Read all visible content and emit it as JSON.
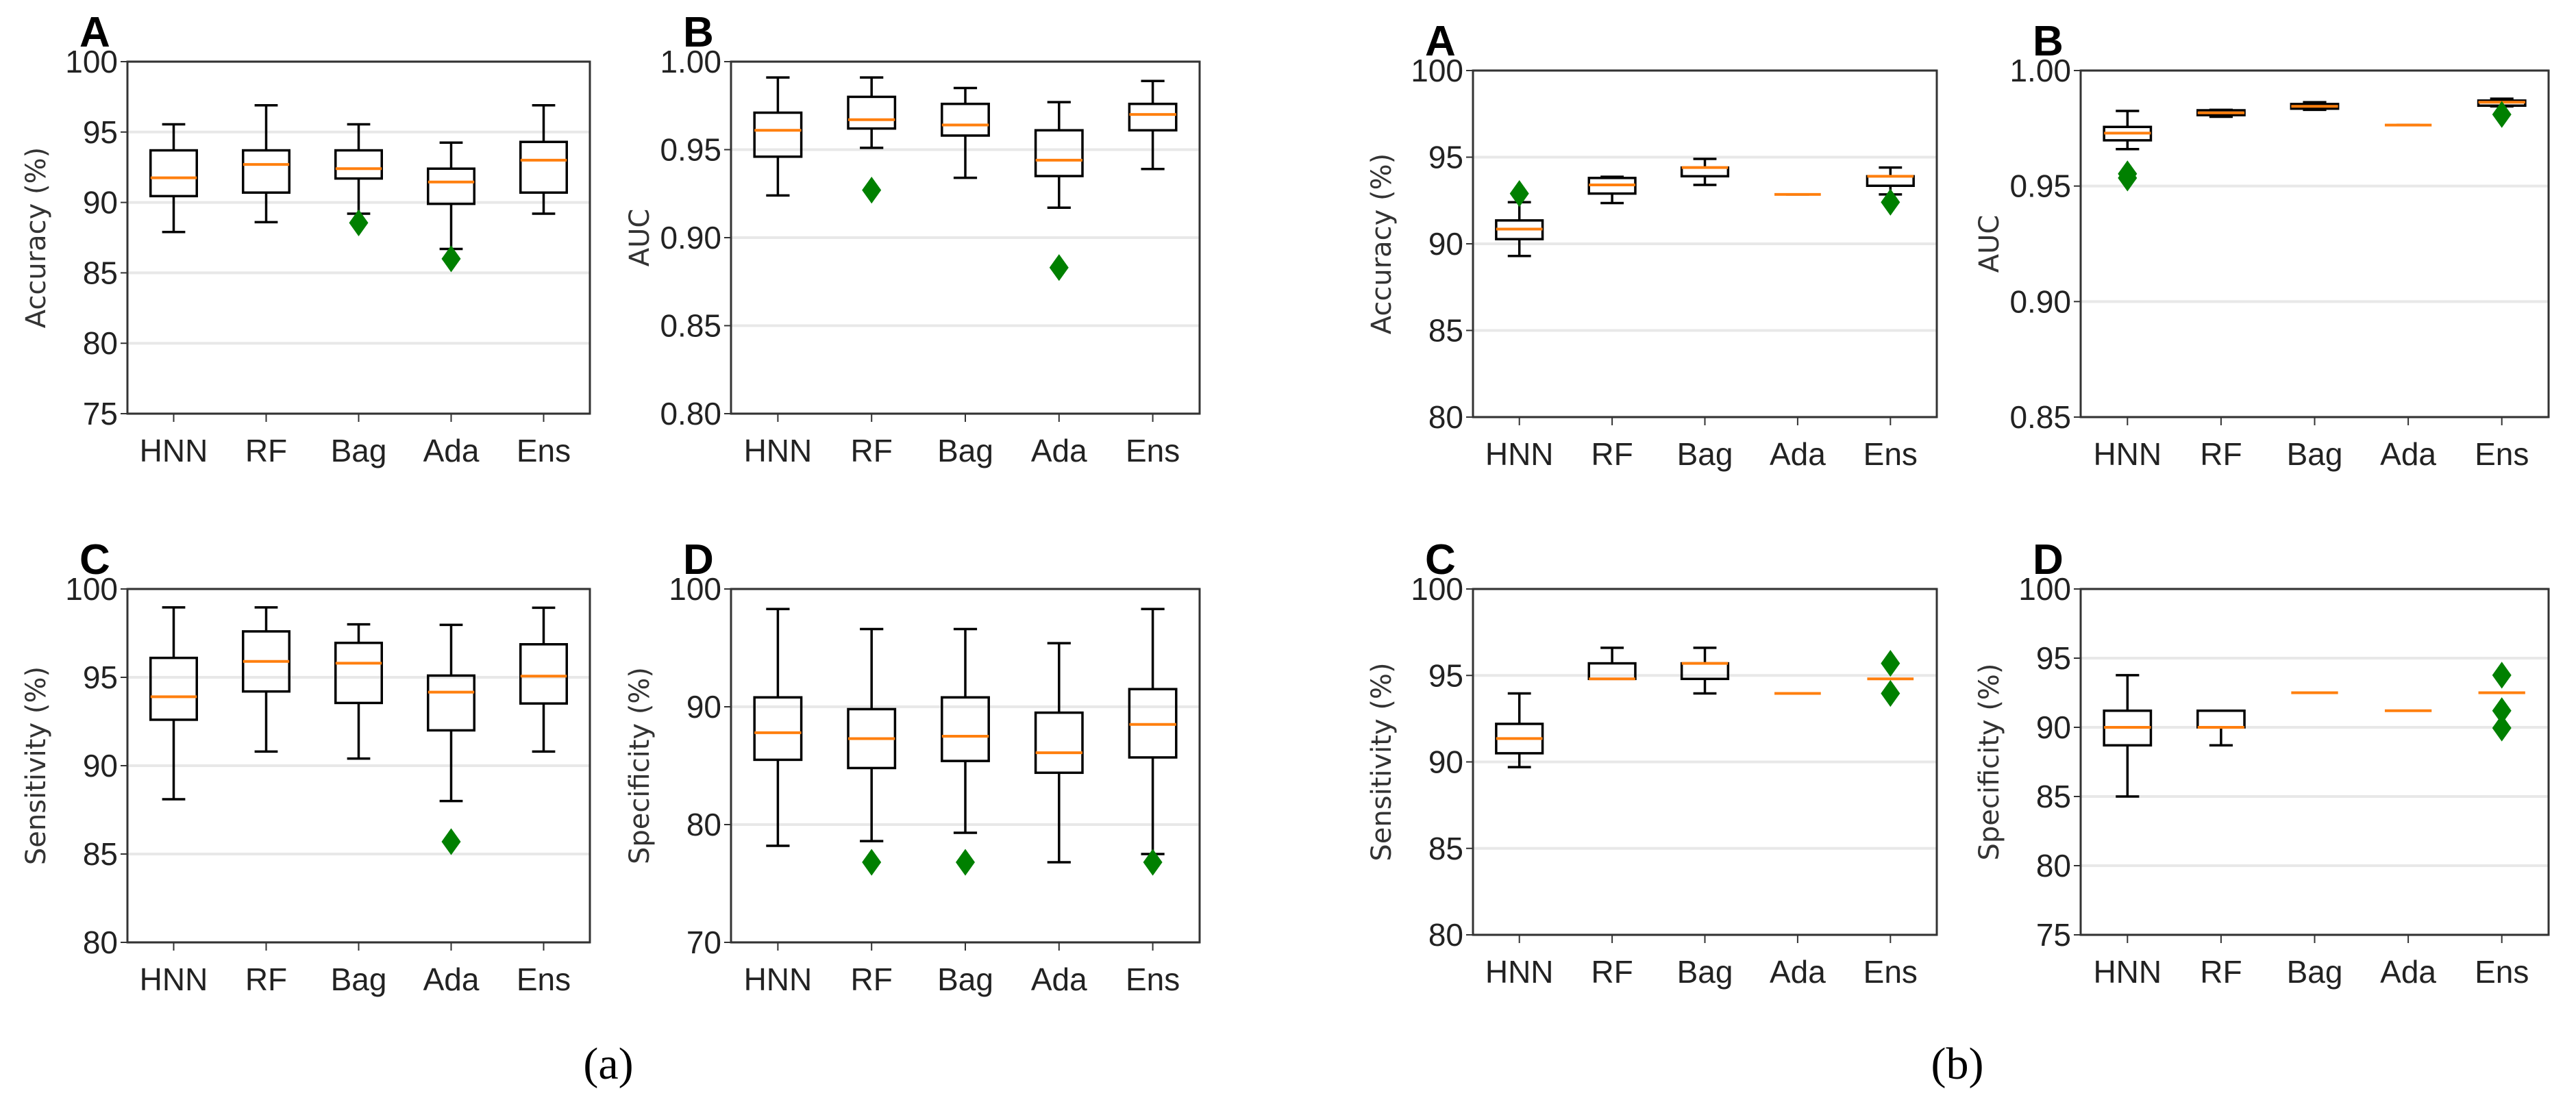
{
  "captions": [
    "(a)",
    "(b)"
  ],
  "colors": {
    "box": "#000000",
    "median": "#ff7f0e",
    "flier": "#008000",
    "grid": "#e8e8e8"
  },
  "chart_data": [
    {
      "type": "box",
      "group": "(a)",
      "panel": "A",
      "ylabel": "Accuracy (%)",
      "ylim": [
        75,
        100
      ],
      "yticks": [
        "75",
        "80",
        "85",
        "90",
        "95",
        "100"
      ],
      "grid": true,
      "categories": [
        "HNN",
        "RF",
        "Bag",
        "Ada",
        "Ens"
      ],
      "boxes": [
        {
          "whislo": 87.9,
          "q1": 90.45,
          "med": 91.75,
          "q3": 93.7,
          "whishi": 95.55,
          "fliers": []
        },
        {
          "whislo": 88.6,
          "q1": 90.7,
          "med": 92.7,
          "q3": 93.7,
          "whishi": 96.9,
          "fliers": []
        },
        {
          "whislo": 89.2,
          "q1": 91.7,
          "med": 92.4,
          "q3": 93.7,
          "whishi": 95.55,
          "fliers": [
            88.55
          ]
        },
        {
          "whislo": 86.7,
          "q1": 89.9,
          "med": 91.45,
          "q3": 92.4,
          "whishi": 94.25,
          "fliers": [
            86.0
          ]
        },
        {
          "whislo": 89.2,
          "q1": 90.7,
          "med": 93.0,
          "q3": 94.3,
          "whishi": 96.9,
          "fliers": []
        }
      ]
    },
    {
      "type": "box",
      "group": "(a)",
      "panel": "B",
      "ylabel": "AUC",
      "ylim": [
        0.8,
        1.0
      ],
      "yticks": [
        "0.80",
        "0.85",
        "0.90",
        "0.95",
        "1.00"
      ],
      "grid": true,
      "categories": [
        "HNN",
        "RF",
        "Bag",
        "Ada",
        "Ens"
      ],
      "boxes": [
        {
          "whislo": 0.924,
          "q1": 0.946,
          "med": 0.961,
          "q3": 0.971,
          "whishi": 0.991,
          "fliers": []
        },
        {
          "whislo": 0.951,
          "q1": 0.962,
          "med": 0.967,
          "q3": 0.98,
          "whishi": 0.991,
          "fliers": [
            0.927
          ]
        },
        {
          "whislo": 0.934,
          "q1": 0.958,
          "med": 0.964,
          "q3": 0.976,
          "whishi": 0.985,
          "fliers": []
        },
        {
          "whislo": 0.917,
          "q1": 0.935,
          "med": 0.944,
          "q3": 0.961,
          "whishi": 0.977,
          "fliers": [
            0.883
          ]
        },
        {
          "whislo": 0.939,
          "q1": 0.961,
          "med": 0.97,
          "q3": 0.976,
          "whishi": 0.989,
          "fliers": []
        }
      ]
    },
    {
      "type": "box",
      "group": "(a)",
      "panel": "C",
      "ylabel": "Sensitivity (%)",
      "ylim": [
        80,
        100
      ],
      "yticks": [
        "80",
        "85",
        "90",
        "95",
        "100"
      ],
      "grid": true,
      "categories": [
        "HNN",
        "RF",
        "Bag",
        "Ada",
        "Ens"
      ],
      "boxes": [
        {
          "whislo": 88.1,
          "q1": 92.6,
          "med": 93.9,
          "q3": 96.1,
          "whishi": 98.96,
          "fliers": []
        },
        {
          "whislo": 90.8,
          "q1": 94.2,
          "med": 95.9,
          "q3": 97.6,
          "whishi": 98.96,
          "fliers": []
        },
        {
          "whislo": 90.4,
          "q1": 93.55,
          "med": 95.8,
          "q3": 96.95,
          "whishi": 98.0,
          "fliers": []
        },
        {
          "whislo": 88.0,
          "q1": 92.0,
          "med": 94.16,
          "q3": 95.1,
          "whishi": 97.97,
          "fliers": [
            85.7
          ]
        },
        {
          "whislo": 90.8,
          "q1": 93.52,
          "med": 95.07,
          "q3": 96.87,
          "whishi": 98.94,
          "fliers": []
        }
      ]
    },
    {
      "type": "box",
      "group": "(a)",
      "panel": "D",
      "ylabel": "Specificity (%)",
      "ylim": [
        70,
        100
      ],
      "yticks": [
        "70",
        "80",
        "90",
        "100"
      ],
      "grid": true,
      "categories": [
        "HNN",
        "RF",
        "Bag",
        "Ada",
        "Ens"
      ],
      "boxes": [
        {
          "whislo": 78.2,
          "q1": 85.5,
          "med": 87.8,
          "q3": 90.8,
          "whishi": 98.3,
          "fliers": []
        },
        {
          "whislo": 78.6,
          "q1": 84.8,
          "med": 87.3,
          "q3": 89.8,
          "whishi": 96.6,
          "fliers": [
            76.8
          ]
        },
        {
          "whislo": 79.3,
          "q1": 85.4,
          "med": 87.5,
          "q3": 90.8,
          "whishi": 96.6,
          "fliers": [
            76.8
          ]
        },
        {
          "whislo": 76.8,
          "q1": 84.4,
          "med": 86.1,
          "q3": 89.5,
          "whishi": 95.4,
          "fliers": []
        },
        {
          "whislo": 77.5,
          "q1": 85.7,
          "med": 88.5,
          "q3": 91.5,
          "whishi": 98.3,
          "fliers": [
            76.8
          ]
        }
      ]
    },
    {
      "type": "box",
      "group": "(b)",
      "panel": "A",
      "ylabel": "Accuracy (%)",
      "ylim": [
        80,
        100
      ],
      "yticks": [
        "80",
        "85",
        "90",
        "95",
        "100"
      ],
      "grid": true,
      "categories": [
        "HNN",
        "RF",
        "Bag",
        "Ada",
        "Ens"
      ],
      "boxes": [
        {
          "whislo": 89.3,
          "q1": 90.27,
          "med": 90.85,
          "q3": 91.35,
          "whishi": 92.4,
          "fliers": [
            92.9
          ]
        },
        {
          "whislo": 92.35,
          "q1": 92.9,
          "med": 93.4,
          "q3": 93.8,
          "whishi": 93.87,
          "fliers": []
        },
        {
          "whislo": 93.4,
          "q1": 93.9,
          "med": 94.4,
          "q3": 94.4,
          "whishi": 94.9,
          "fliers": []
        },
        {
          "whislo": 92.85,
          "q1": 92.85,
          "med": 92.85,
          "q3": 92.85,
          "whishi": 92.85,
          "fliers": []
        },
        {
          "whislo": 92.85,
          "q1": 93.35,
          "med": 93.9,
          "q3": 93.9,
          "whishi": 94.4,
          "fliers": [
            92.4
          ]
        }
      ]
    },
    {
      "type": "box",
      "group": "(b)",
      "panel": "B",
      "ylabel": "AUC",
      "ylim": [
        0.85,
        1.0
      ],
      "yticks": [
        "0.85",
        "0.90",
        "0.95",
        "1.00"
      ],
      "grid": true,
      "categories": [
        "HNN",
        "RF",
        "Bag",
        "Ada",
        "Ens"
      ],
      "boxes": [
        {
          "whislo": 0.966,
          "q1": 0.9698,
          "med": 0.9729,
          "q3": 0.9756,
          "whishi": 0.9825,
          "fliers": [
            0.9553,
            0.9535
          ]
        },
        {
          "whislo": 0.98,
          "q1": 0.9807,
          "med": 0.9817,
          "q3": 0.9828,
          "whishi": 0.983,
          "fliers": []
        },
        {
          "whislo": 0.983,
          "q1": 0.9835,
          "med": 0.9845,
          "q3": 0.9855,
          "whishi": 0.9863,
          "fliers": []
        },
        {
          "whislo": 0.9764,
          "q1": 0.9764,
          "med": 0.9764,
          "q3": 0.9764,
          "whishi": 0.9764,
          "fliers": []
        },
        {
          "whislo": 0.9845,
          "q1": 0.9848,
          "med": 0.9863,
          "q3": 0.987,
          "whishi": 0.9878,
          "fliers": [
            0.981
          ]
        }
      ]
    },
    {
      "type": "box",
      "group": "(b)",
      "panel": "C",
      "ylabel": "Sensitivity (%)",
      "ylim": [
        80,
        100
      ],
      "yticks": [
        "80",
        "85",
        "90",
        "95",
        "100"
      ],
      "grid": true,
      "categories": [
        "HNN",
        "RF",
        "Bag",
        "Ada",
        "Ens"
      ],
      "boxes": [
        {
          "whislo": 89.7,
          "q1": 90.5,
          "med": 91.35,
          "q3": 92.2,
          "whishi": 93.96,
          "fliers": []
        },
        {
          "whislo": 94.8,
          "q1": 94.8,
          "med": 94.8,
          "q3": 95.7,
          "whishi": 96.6,
          "fliers": []
        },
        {
          "whislo": 93.96,
          "q1": 94.8,
          "med": 95.7,
          "q3": 95.7,
          "whishi": 96.6,
          "fliers": []
        },
        {
          "whislo": 93.96,
          "q1": 93.96,
          "med": 93.96,
          "q3": 93.96,
          "whishi": 93.96,
          "fliers": []
        },
        {
          "whislo": 94.8,
          "q1": 94.8,
          "med": 94.8,
          "q3": 94.8,
          "whishi": 94.8,
          "fliers": [
            95.7,
            93.96
          ]
        }
      ]
    },
    {
      "type": "box",
      "group": "(b)",
      "panel": "D",
      "ylabel": "Specificity (%)",
      "ylim": [
        75,
        100
      ],
      "yticks": [
        "75",
        "80",
        "85",
        "90",
        "95",
        "100"
      ],
      "grid": true,
      "categories": [
        "HNN",
        "RF",
        "Bag",
        "Ada",
        "Ens"
      ],
      "boxes": [
        {
          "whislo": 85.0,
          "q1": 88.7,
          "med": 90.0,
          "q3": 91.2,
          "whishi": 93.77,
          "fliers": []
        },
        {
          "whislo": 88.7,
          "q1": 90.0,
          "med": 90.0,
          "q3": 91.2,
          "whishi": 91.2,
          "fliers": []
        },
        {
          "whislo": 92.5,
          "q1": 92.5,
          "med": 92.5,
          "q3": 92.5,
          "whishi": 92.5,
          "fliers": []
        },
        {
          "whislo": 91.2,
          "q1": 91.2,
          "med": 91.2,
          "q3": 91.2,
          "whishi": 91.2,
          "fliers": []
        },
        {
          "whislo": 92.5,
          "q1": 92.5,
          "med": 92.5,
          "q3": 92.5,
          "whishi": 92.5,
          "fliers": [
            93.77,
            91.2,
            89.95
          ]
        }
      ]
    }
  ]
}
